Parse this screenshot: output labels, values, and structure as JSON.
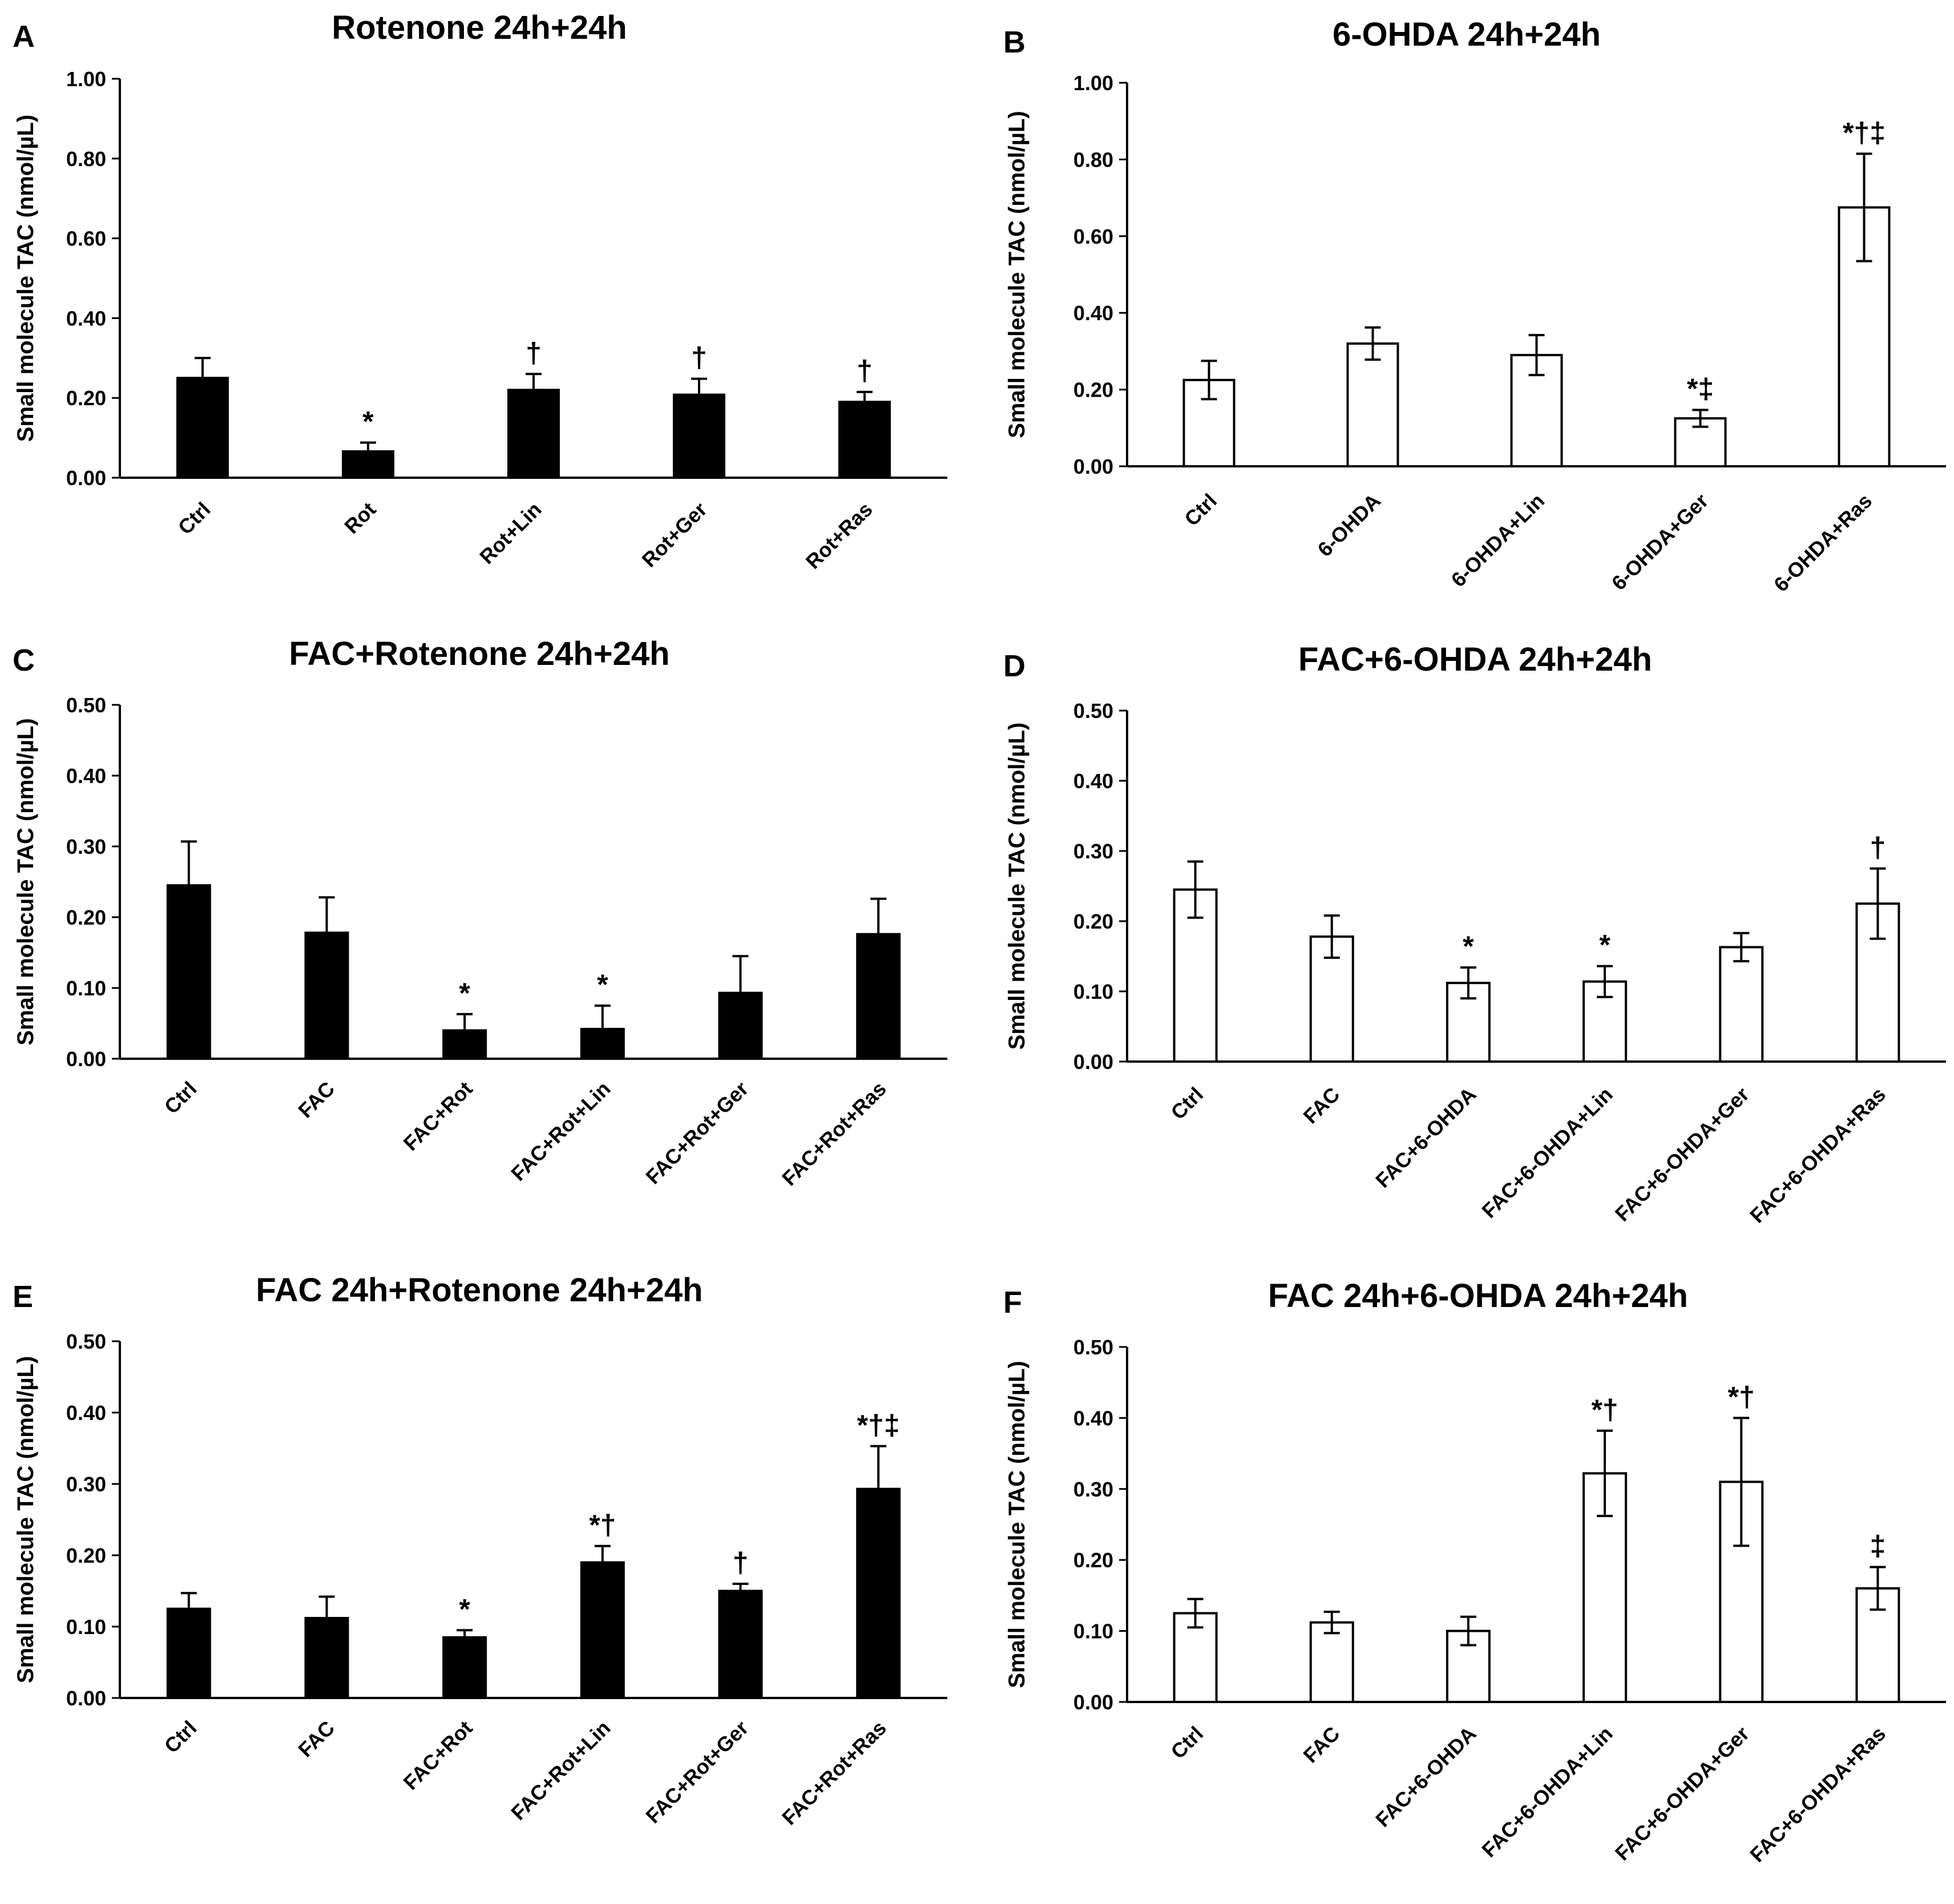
{
  "chart_data": [
    {
      "panel": "A",
      "type": "bar",
      "title": "Rotenone 24h+24h",
      "xlabel": "",
      "ylabel": "Small molecule TAC (nmol/µL)",
      "ylim": [
        0,
        1.0
      ],
      "yticks": [
        "0.00",
        "0.20",
        "0.40",
        "0.60",
        "0.80",
        "1.00"
      ],
      "bar_fill": "#000000",
      "error_style": "upper",
      "categories": [
        "Ctrl",
        "Rot",
        "Rot+Lin",
        "Rot+Ger",
        "Rot+Ras"
      ],
      "values": [
        0.25,
        0.066,
        0.22,
        0.208,
        0.19
      ],
      "errors": [
        0.05,
        0.022,
        0.04,
        0.04,
        0.025
      ],
      "annotations": [
        "",
        "*",
        "†",
        "†",
        "†"
      ]
    },
    {
      "panel": "B",
      "type": "bar",
      "title": "6-OHDA 24h+24h",
      "xlabel": "",
      "ylabel": "Small molecule TAC (nmol/µL)",
      "ylim": [
        0,
        1.0
      ],
      "yticks": [
        "0.00",
        "0.20",
        "0.40",
        "0.60",
        "0.80",
        "1.00"
      ],
      "bar_fill": "#ffffff",
      "error_style": "both",
      "categories": [
        "Ctrl",
        "6-OHDA",
        "6-OHDA+Lin",
        "6-OHDA+Ger",
        "6-OHDA+Ras"
      ],
      "values": [
        0.225,
        0.32,
        0.29,
        0.125,
        0.675
      ],
      "errors": [
        0.05,
        0.042,
        0.052,
        0.022,
        0.14
      ],
      "annotations": [
        "",
        "",
        "",
        "*‡",
        "*†‡"
      ]
    },
    {
      "panel": "C",
      "type": "bar",
      "title": "FAC+Rotenone 24h+24h",
      "xlabel": "",
      "ylabel": "Small molecule TAC (nmol/µL)",
      "ylim": [
        0,
        0.5
      ],
      "yticks": [
        "0.00",
        "0.10",
        "0.20",
        "0.30",
        "0.40",
        "0.50"
      ],
      "bar_fill": "#000000",
      "error_style": "upper",
      "categories": [
        "Ctrl",
        "FAC",
        "FAC+Rot",
        "FAC+Rot+Lin",
        "FAC+Rot+Ger",
        "FAC+Rot+Ras"
      ],
      "values": [
        0.245,
        0.178,
        0.04,
        0.042,
        0.093,
        0.176
      ],
      "errors": [
        0.062,
        0.05,
        0.023,
        0.033,
        0.052,
        0.05
      ],
      "annotations": [
        "",
        "",
        "*",
        "*",
        "",
        ""
      ]
    },
    {
      "panel": "D",
      "type": "bar",
      "title": "FAC+6-OHDA 24h+24h",
      "xlabel": "",
      "ylabel": "Small molecule TAC (nmol/µL)",
      "ylim": [
        0,
        0.5
      ],
      "yticks": [
        "0.00",
        "0.10",
        "0.20",
        "0.30",
        "0.40",
        "0.50"
      ],
      "bar_fill": "#ffffff",
      "error_style": "both",
      "categories": [
        "Ctrl",
        "FAC",
        "FAC+6-OHDA",
        "FAC+6-OHDA+Lin",
        "FAC+6-OHDA+Ger",
        "FAC+6-OHDA+Ras"
      ],
      "values": [
        0.245,
        0.178,
        0.112,
        0.114,
        0.163,
        0.225
      ],
      "errors": [
        0.04,
        0.03,
        0.022,
        0.022,
        0.02,
        0.05
      ],
      "annotations": [
        "",
        "",
        "*",
        "*",
        "",
        "†"
      ]
    },
    {
      "panel": "E",
      "type": "bar",
      "title": "FAC 24h+Rotenone 24h+24h",
      "xlabel": "",
      "ylabel": "Small molecule TAC (nmol/µL)",
      "ylim": [
        0,
        0.5
      ],
      "yticks": [
        "0.00",
        "0.10",
        "0.20",
        "0.30",
        "0.40",
        "0.50"
      ],
      "bar_fill": "#000000",
      "error_style": "upper",
      "categories": [
        "Ctrl",
        "FAC",
        "FAC+Rot",
        "FAC+Rot+Lin",
        "FAC+Rot+Ger",
        "FAC+Rot+Ras"
      ],
      "values": [
        0.125,
        0.112,
        0.085,
        0.19,
        0.15,
        0.293
      ],
      "errors": [
        0.022,
        0.03,
        0.01,
        0.023,
        0.01,
        0.06
      ],
      "annotations": [
        "",
        "",
        "*",
        "*†",
        "†",
        "*†‡"
      ]
    },
    {
      "panel": "F",
      "type": "bar",
      "title": "FAC 24h+6-OHDA 24h+24h",
      "xlabel": "",
      "ylabel": "Small molecule TAC (nmol/µL)",
      "ylim": [
        0,
        0.5
      ],
      "yticks": [
        "0.00",
        "0.10",
        "0.20",
        "0.30",
        "0.40",
        "0.50"
      ],
      "bar_fill": "#ffffff",
      "error_style": "both",
      "categories": [
        "Ctrl",
        "FAC",
        "FAC+6-OHDA",
        "FAC+6-OHDA+Lin",
        "FAC+6-OHDA+Ger",
        "FAC+6-OHDA+Ras"
      ],
      "values": [
        0.125,
        0.112,
        0.1,
        0.322,
        0.31,
        0.16
      ],
      "errors": [
        0.02,
        0.015,
        0.02,
        0.06,
        0.09,
        0.03
      ],
      "annotations": [
        "",
        "",
        "",
        "*†",
        "*†",
        "‡"
      ]
    }
  ]
}
